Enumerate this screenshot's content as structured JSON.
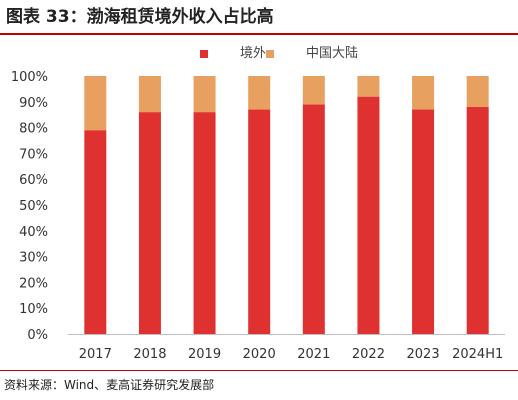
{
  "title": "图表 33：渤海租赁境外收入占比高",
  "source": "资料来源：Wind、麦高证券研究发展部",
  "chart_data": {
    "type": "bar",
    "stacked": true,
    "categories": [
      "2017",
      "2018",
      "2019",
      "2020",
      "2021",
      "2022",
      "2023",
      "2024H1"
    ],
    "series": [
      {
        "name": "境外",
        "color": "#e03131",
        "values": [
          79,
          86,
          86,
          87,
          89,
          92,
          87,
          88
        ]
      },
      {
        "name": "中国大陆",
        "color": "#e8a060",
        "values": [
          21,
          14,
          14,
          13,
          11,
          8,
          13,
          12
        ]
      }
    ],
    "yticks": [
      "0%",
      "10%",
      "20%",
      "30%",
      "40%",
      "50%",
      "60%",
      "70%",
      "80%",
      "90%",
      "100%"
    ],
    "ylim": [
      0,
      100
    ],
    "legend_position": "top-center",
    "grid": false
  }
}
